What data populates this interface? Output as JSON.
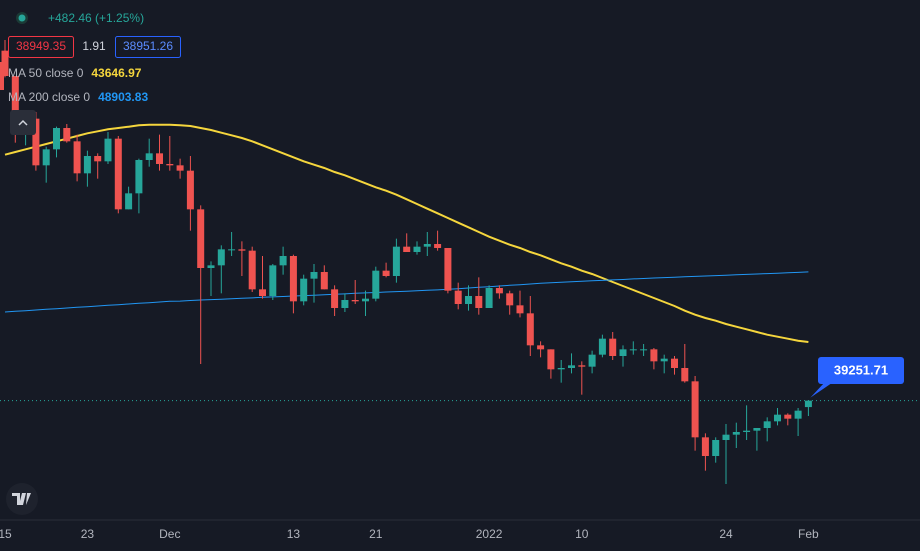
{
  "header": {
    "change": "+482.46 (+1.25%)",
    "bid": 38949.35,
    "spread": 1.91,
    "ask": 38951.26
  },
  "chart_data": {
    "type": "candlestick",
    "categories": [
      "15",
      null,
      null,
      null,
      null,
      null,
      null,
      null,
      "23",
      null,
      null,
      null,
      null,
      null,
      null,
      null,
      "Dec",
      null,
      null,
      null,
      null,
      null,
      null,
      null,
      null,
      null,
      null,
      null,
      "13",
      null,
      null,
      null,
      null,
      null,
      null,
      null,
      "21",
      null,
      null,
      null,
      null,
      null,
      null,
      null,
      null,
      null,
      null,
      "2022",
      null,
      null,
      null,
      null,
      null,
      null,
      null,
      null,
      "10",
      null,
      null,
      null,
      null,
      null,
      null,
      null,
      null,
      null,
      null,
      null,
      null,
      null,
      "24",
      null,
      null,
      null,
      null,
      null,
      null,
      null,
      "Feb"
    ],
    "open": [
      65500,
      63600,
      60300,
      60400,
      56900,
      58100,
      59700,
      58700,
      56300,
      57600,
      57200,
      58900,
      53600,
      54800,
      57300,
      57800,
      57000,
      56900,
      56500,
      53600,
      49200,
      49400,
      50600,
      50600,
      50500,
      47600,
      47100,
      49400,
      50100,
      46700,
      48400,
      48900,
      47600,
      46200,
      46800,
      46700,
      46900,
      49000,
      48600,
      50800,
      50400,
      50800,
      51000,
      50700,
      47500,
      46500,
      47100,
      46200,
      47700,
      47300,
      46400,
      45800,
      43400,
      43100,
      41600,
      41700,
      41900,
      41800,
      42700,
      43900,
      42600,
      43100,
      43100,
      43100,
      42200,
      42400,
      41700,
      40700,
      36500,
      35100,
      36300,
      36700,
      36900,
      37000,
      37200,
      37700,
      38200,
      37900,
      38769.25
    ],
    "high": [
      66300,
      63600,
      60800,
      60900,
      58300,
      59800,
      60000,
      59200,
      58000,
      57800,
      59400,
      59100,
      55300,
      57400,
      58900,
      59200,
      59100,
      57400,
      57600,
      53900,
      49700,
      50900,
      51900,
      51200,
      50800,
      50100,
      49500,
      50800,
      50200,
      48700,
      49500,
      49400,
      47900,
      47300,
      48300,
      47500,
      49300,
      49600,
      51400,
      51800,
      51200,
      51900,
      52000,
      50700,
      48100,
      47900,
      48500,
      47900,
      47900,
      47500,
      47500,
      47100,
      43700,
      43100,
      42300,
      42800,
      42200,
      43000,
      44200,
      44400,
      43400,
      43700,
      43500,
      43200,
      42700,
      42600,
      43500,
      41100,
      36800,
      36500,
      37500,
      37600,
      38900,
      37200,
      38000,
      38700,
      38300,
      38700,
      39300
    ],
    "low": [
      63500,
      58600,
      58400,
      56500,
      55600,
      57500,
      58600,
      55700,
      55300,
      55900,
      57000,
      53300,
      53600,
      53300,
      56800,
      56500,
      56500,
      55900,
      52000,
      42000,
      47100,
      47300,
      50100,
      48600,
      47400,
      46900,
      46800,
      48700,
      45800,
      46400,
      46600,
      47600,
      45600,
      45900,
      46500,
      45600,
      46700,
      48500,
      48100,
      50400,
      50200,
      50100,
      50500,
      47300,
      46100,
      46000,
      45700,
      46200,
      46900,
      45700,
      45500,
      42600,
      42500,
      40900,
      40600,
      41300,
      39700,
      41300,
      42500,
      42300,
      41800,
      42700,
      42600,
      41600,
      41300,
      41200,
      40600,
      35500,
      34000,
      34600,
      33000,
      35700,
      36300,
      35500,
      36200,
      37400,
      37400,
      36600,
      38100
    ],
    "close": [
      63600,
      60300,
      60400,
      56900,
      58100,
      59700,
      58700,
      56300,
      57600,
      57200,
      58900,
      53600,
      54800,
      57300,
      57800,
      57000,
      56900,
      56500,
      53600,
      49200,
      49400,
      50600,
      50600,
      50500,
      47600,
      47100,
      49400,
      50100,
      46700,
      48400,
      48900,
      47600,
      46200,
      46800,
      46700,
      46900,
      49000,
      48600,
      50800,
      50400,
      50800,
      51000,
      50700,
      47500,
      46500,
      47100,
      46200,
      47700,
      47300,
      46400,
      45800,
      43400,
      43100,
      41600,
      41700,
      41900,
      41800,
      42700,
      43900,
      42600,
      43100,
      43100,
      43100,
      42200,
      42400,
      41700,
      40700,
      36500,
      35100,
      36300,
      36700,
      36900,
      37000,
      37200,
      37700,
      38200,
      37900,
      38500,
      39251.71
    ],
    "up_color": "#26a69a",
    "down_color": "#ef5350",
    "series": [
      {
        "name": "MA 50 close 0",
        "color": "#f5d63d",
        "values": [
          57700,
          57900,
          58100,
          58300,
          58500,
          58700,
          58900,
          59100,
          59300,
          59450,
          59600,
          59700,
          59800,
          59900,
          59950,
          59950,
          59950,
          59900,
          59850,
          59700,
          59550,
          59350,
          59150,
          58950,
          58700,
          58400,
          58100,
          57800,
          57500,
          57200,
          56950,
          56700,
          56400,
          56150,
          55850,
          55550,
          55250,
          55000,
          54700,
          54350,
          54000,
          53650,
          53300,
          52950,
          52600,
          52250,
          51900,
          51550,
          51250,
          50950,
          50700,
          50400,
          50150,
          49850,
          49550,
          49300,
          49000,
          48750,
          48450,
          48150,
          47850,
          47550,
          47250,
          46950,
          46650,
          46350,
          46000,
          45700,
          45450,
          45250,
          45000,
          44800,
          44600,
          44400,
          44200,
          44050,
          43900,
          43750,
          43646.97
        ]
      },
      {
        "name": "MA 200 close 0",
        "color": "#2196f3",
        "values": [
          45900,
          45950,
          46000,
          46050,
          46100,
          46150,
          46200,
          46250,
          46300,
          46350,
          46400,
          46450,
          46500,
          46550,
          46600,
          46650,
          46700,
          46720,
          46760,
          46800,
          46830,
          46860,
          46900,
          46930,
          46960,
          47000,
          47030,
          47060,
          47100,
          47130,
          47160,
          47200,
          47230,
          47260,
          47300,
          47330,
          47360,
          47400,
          47430,
          47460,
          47500,
          47530,
          47560,
          47600,
          47650,
          47700,
          47750,
          47800,
          47850,
          47900,
          47950,
          48000,
          48050,
          48100,
          48130,
          48170,
          48200,
          48240,
          48270,
          48310,
          48340,
          48380,
          48410,
          48450,
          48480,
          48510,
          48540,
          48570,
          48600,
          48630,
          48660,
          48690,
          48720,
          48750,
          48780,
          48810,
          48840,
          48870,
          48903.83
        ]
      }
    ],
    "ylim": [
      30300,
      69300
    ]
  }
}
